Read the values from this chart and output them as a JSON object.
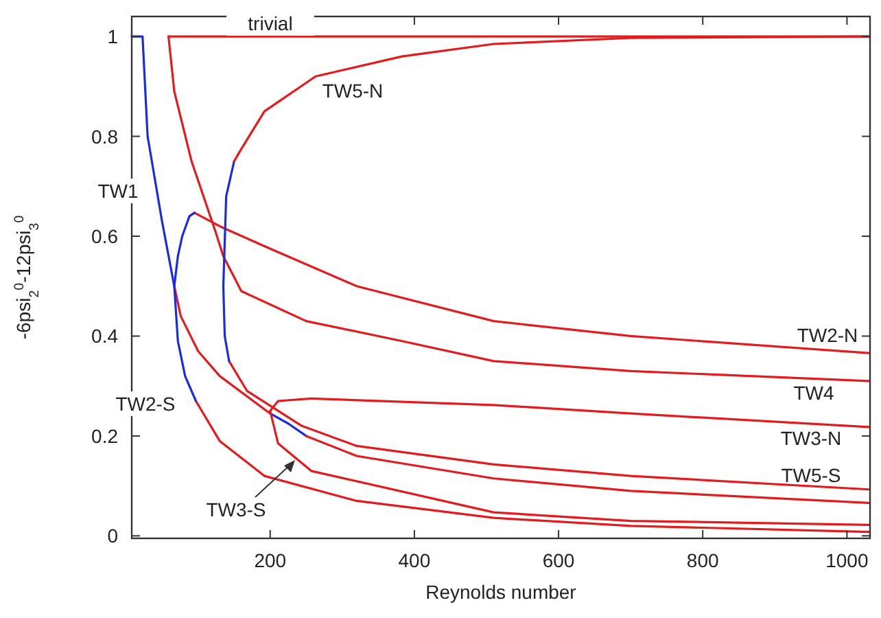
{
  "chart_data": {
    "type": "line",
    "xlabel": "Reynolds number",
    "ylabel": "-6psi$_{2}$$^{0}$-12psi$_{3}$$^{0}$",
    "xlim": [
      8,
      1032
    ],
    "ylim": [
      -0.005,
      1.04
    ],
    "xticks": [
      200,
      400,
      600,
      800,
      1000
    ],
    "yticks": [
      0,
      0.2,
      0.4,
      0.6,
      0.8,
      1
    ],
    "grid": false,
    "marker": "none",
    "line_style": "solid",
    "series": [
      {
        "color": "#e41a1c",
        "x": [
          59,
          200,
          400,
          600,
          800,
          1030
        ],
        "values": [
          1,
          1,
          1,
          1,
          1,
          1
        ]
      },
      {
        "color": "#e41a1c",
        "x": [
          95,
          130,
          192,
          320,
          510,
          700,
          1030
        ],
        "values": [
          0.647,
          0.62,
          0.58,
          0.5,
          0.43,
          0.4,
          0.366
        ]
      },
      {
        "color": "#e41a1c",
        "x": [
          97,
          130,
          192,
          320,
          510,
          700,
          1030
        ],
        "values": [
          0.27,
          0.19,
          0.12,
          0.07,
          0.036,
          0.02,
          0.008
        ]
      },
      {
        "color": "#e41a1c",
        "x": [
          59,
          67,
          91,
          124,
          135,
          160,
          250,
          383,
          510,
          700,
          1030
        ],
        "values": [
          1,
          0.89,
          0.75,
          0.61,
          0.56,
          0.49,
          0.43,
          0.39,
          0.35,
          0.33,
          0.31
        ]
      },
      {
        "color": "#e41a1c",
        "x": [
          67,
          76,
          100,
          130,
          200
        ],
        "values": [
          0.5,
          0.44,
          0.37,
          0.32,
          0.245
        ]
      },
      {
        "color": "#1a2be4",
        "x": [
          200,
          225,
          250
        ],
        "values": [
          0.245,
          0.225,
          0.2
        ]
      },
      {
        "color": "#e41a1c",
        "x": [
          250,
          320,
          510,
          700,
          1030
        ],
        "values": [
          0.2,
          0.16,
          0.115,
          0.09,
          0.066
        ]
      },
      {
        "color": "#e41a1c",
        "x": [
          1030,
          700,
          510,
          320,
          244,
          168,
          143
        ],
        "values": [
          0.093,
          0.12,
          0.143,
          0.18,
          0.22,
          0.29,
          0.35
        ]
      },
      {
        "color": "#1a2be4",
        "x": [
          143,
          137,
          135,
          139,
          150
        ],
        "values": [
          0.35,
          0.4,
          0.5,
          0.68,
          0.75
        ]
      },
      {
        "color": "#e41a1c",
        "x": [
          150,
          158,
          192,
          263,
          383,
          510,
          700,
          1030
        ],
        "values": [
          0.75,
          0.77,
          0.85,
          0.92,
          0.96,
          0.985,
          0.997,
          1
        ]
      },
      {
        "color": "#e41a1c",
        "x": [
          200,
          211,
          257,
          510,
          700,
          1030
        ],
        "values": [
          0.25,
          0.27,
          0.275,
          0.262,
          0.245,
          0.218
        ]
      },
      {
        "color": "#e41a1c",
        "x": [
          200,
          211,
          257,
          510,
          700,
          1030
        ],
        "values": [
          0.25,
          0.185,
          0.13,
          0.047,
          0.03,
          0.022
        ]
      },
      {
        "color": "#1a2be4",
        "x": [
          8,
          23,
          30,
          50,
          67,
          72,
          82,
          97
        ],
        "values": [
          1,
          1,
          0.8,
          0.63,
          0.5,
          0.39,
          0.32,
          0.27
        ]
      },
      {
        "color": "#1a2be4",
        "x": [
          67,
          72,
          78,
          88,
          95
        ],
        "values": [
          0.5,
          0.56,
          0.6,
          0.64,
          0.647
        ]
      }
    ],
    "annotations": [
      "trivial",
      "TW5-N",
      "TW1",
      "TW2-S",
      "TW3-S",
      "TW2-N",
      "TW4",
      "TW3-N",
      "TW5-S"
    ]
  }
}
